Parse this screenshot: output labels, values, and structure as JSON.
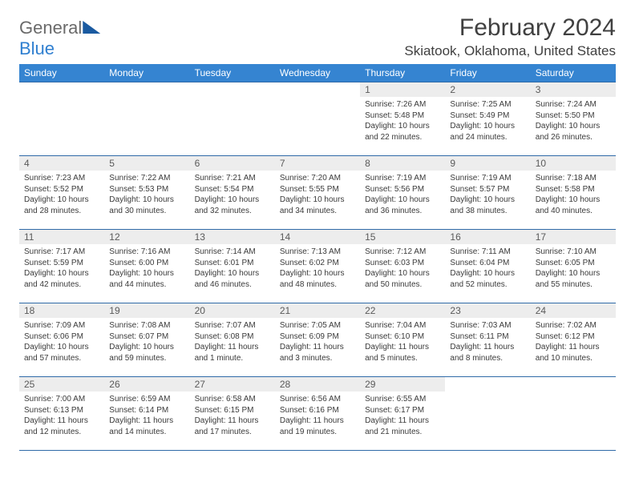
{
  "logo": {
    "word1": "General",
    "word2": "Blue"
  },
  "title": "February 2024",
  "location": "Skiatook, Oklahoma, United States",
  "day_headers": [
    "Sunday",
    "Monday",
    "Tuesday",
    "Wednesday",
    "Thursday",
    "Friday",
    "Saturday"
  ],
  "colors": {
    "header_bg": "#3584d1",
    "header_text": "#ffffff",
    "daynum_bg": "#ededed",
    "border": "#2f6aa8",
    "text": "#3a3a3a",
    "logo_gray": "#6a6a6a",
    "logo_blue": "#2f7fd0"
  },
  "weeks": [
    [
      null,
      null,
      null,
      null,
      {
        "n": "1",
        "sr": "Sunrise: 7:26 AM",
        "ss": "Sunset: 5:48 PM",
        "dl": "Daylight: 10 hours and 22 minutes."
      },
      {
        "n": "2",
        "sr": "Sunrise: 7:25 AM",
        "ss": "Sunset: 5:49 PM",
        "dl": "Daylight: 10 hours and 24 minutes."
      },
      {
        "n": "3",
        "sr": "Sunrise: 7:24 AM",
        "ss": "Sunset: 5:50 PM",
        "dl": "Daylight: 10 hours and 26 minutes."
      }
    ],
    [
      {
        "n": "4",
        "sr": "Sunrise: 7:23 AM",
        "ss": "Sunset: 5:52 PM",
        "dl": "Daylight: 10 hours and 28 minutes."
      },
      {
        "n": "5",
        "sr": "Sunrise: 7:22 AM",
        "ss": "Sunset: 5:53 PM",
        "dl": "Daylight: 10 hours and 30 minutes."
      },
      {
        "n": "6",
        "sr": "Sunrise: 7:21 AM",
        "ss": "Sunset: 5:54 PM",
        "dl": "Daylight: 10 hours and 32 minutes."
      },
      {
        "n": "7",
        "sr": "Sunrise: 7:20 AM",
        "ss": "Sunset: 5:55 PM",
        "dl": "Daylight: 10 hours and 34 minutes."
      },
      {
        "n": "8",
        "sr": "Sunrise: 7:19 AM",
        "ss": "Sunset: 5:56 PM",
        "dl": "Daylight: 10 hours and 36 minutes."
      },
      {
        "n": "9",
        "sr": "Sunrise: 7:19 AM",
        "ss": "Sunset: 5:57 PM",
        "dl": "Daylight: 10 hours and 38 minutes."
      },
      {
        "n": "10",
        "sr": "Sunrise: 7:18 AM",
        "ss": "Sunset: 5:58 PM",
        "dl": "Daylight: 10 hours and 40 minutes."
      }
    ],
    [
      {
        "n": "11",
        "sr": "Sunrise: 7:17 AM",
        "ss": "Sunset: 5:59 PM",
        "dl": "Daylight: 10 hours and 42 minutes."
      },
      {
        "n": "12",
        "sr": "Sunrise: 7:16 AM",
        "ss": "Sunset: 6:00 PM",
        "dl": "Daylight: 10 hours and 44 minutes."
      },
      {
        "n": "13",
        "sr": "Sunrise: 7:14 AM",
        "ss": "Sunset: 6:01 PM",
        "dl": "Daylight: 10 hours and 46 minutes."
      },
      {
        "n": "14",
        "sr": "Sunrise: 7:13 AM",
        "ss": "Sunset: 6:02 PM",
        "dl": "Daylight: 10 hours and 48 minutes."
      },
      {
        "n": "15",
        "sr": "Sunrise: 7:12 AM",
        "ss": "Sunset: 6:03 PM",
        "dl": "Daylight: 10 hours and 50 minutes."
      },
      {
        "n": "16",
        "sr": "Sunrise: 7:11 AM",
        "ss": "Sunset: 6:04 PM",
        "dl": "Daylight: 10 hours and 52 minutes."
      },
      {
        "n": "17",
        "sr": "Sunrise: 7:10 AM",
        "ss": "Sunset: 6:05 PM",
        "dl": "Daylight: 10 hours and 55 minutes."
      }
    ],
    [
      {
        "n": "18",
        "sr": "Sunrise: 7:09 AM",
        "ss": "Sunset: 6:06 PM",
        "dl": "Daylight: 10 hours and 57 minutes."
      },
      {
        "n": "19",
        "sr": "Sunrise: 7:08 AM",
        "ss": "Sunset: 6:07 PM",
        "dl": "Daylight: 10 hours and 59 minutes."
      },
      {
        "n": "20",
        "sr": "Sunrise: 7:07 AM",
        "ss": "Sunset: 6:08 PM",
        "dl": "Daylight: 11 hours and 1 minute."
      },
      {
        "n": "21",
        "sr": "Sunrise: 7:05 AM",
        "ss": "Sunset: 6:09 PM",
        "dl": "Daylight: 11 hours and 3 minutes."
      },
      {
        "n": "22",
        "sr": "Sunrise: 7:04 AM",
        "ss": "Sunset: 6:10 PM",
        "dl": "Daylight: 11 hours and 5 minutes."
      },
      {
        "n": "23",
        "sr": "Sunrise: 7:03 AM",
        "ss": "Sunset: 6:11 PM",
        "dl": "Daylight: 11 hours and 8 minutes."
      },
      {
        "n": "24",
        "sr": "Sunrise: 7:02 AM",
        "ss": "Sunset: 6:12 PM",
        "dl": "Daylight: 11 hours and 10 minutes."
      }
    ],
    [
      {
        "n": "25",
        "sr": "Sunrise: 7:00 AM",
        "ss": "Sunset: 6:13 PM",
        "dl": "Daylight: 11 hours and 12 minutes."
      },
      {
        "n": "26",
        "sr": "Sunrise: 6:59 AM",
        "ss": "Sunset: 6:14 PM",
        "dl": "Daylight: 11 hours and 14 minutes."
      },
      {
        "n": "27",
        "sr": "Sunrise: 6:58 AM",
        "ss": "Sunset: 6:15 PM",
        "dl": "Daylight: 11 hours and 17 minutes."
      },
      {
        "n": "28",
        "sr": "Sunrise: 6:56 AM",
        "ss": "Sunset: 6:16 PM",
        "dl": "Daylight: 11 hours and 19 minutes."
      },
      {
        "n": "29",
        "sr": "Sunrise: 6:55 AM",
        "ss": "Sunset: 6:17 PM",
        "dl": "Daylight: 11 hours and 21 minutes."
      },
      null,
      null
    ]
  ]
}
